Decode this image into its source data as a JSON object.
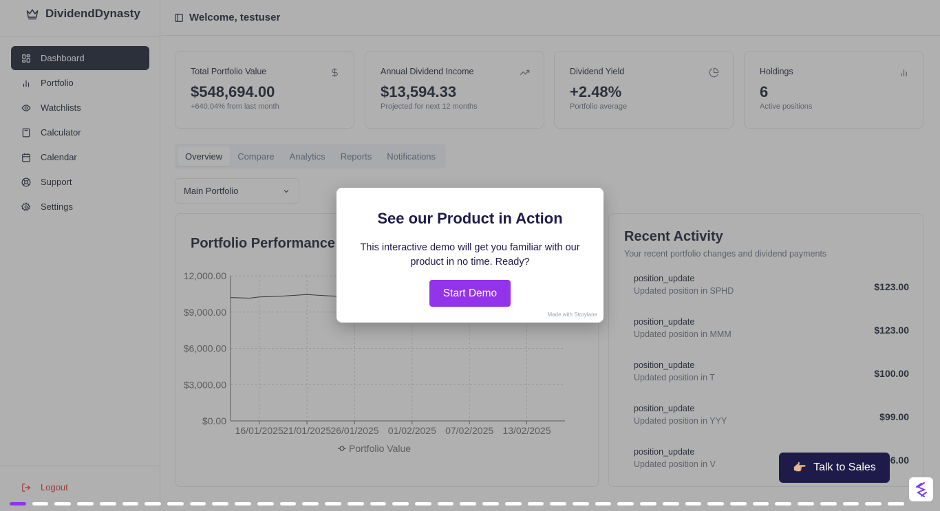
{
  "brand": {
    "name": "DividendDynasty"
  },
  "header": {
    "title": "Welcome, testuser"
  },
  "sidebar": {
    "items": [
      {
        "label": "Dashboard",
        "icon": "dashboard-icon",
        "active": true
      },
      {
        "label": "Portfolio",
        "icon": "bar-chart-icon"
      },
      {
        "label": "Watchlists",
        "icon": "eye-icon"
      },
      {
        "label": "Calculator",
        "icon": "calculator-icon"
      },
      {
        "label": "Calendar",
        "icon": "calendar-icon"
      },
      {
        "label": "Support",
        "icon": "lifebuoy-icon"
      },
      {
        "label": "Settings",
        "icon": "gear-icon"
      }
    ],
    "logout": "Logout"
  },
  "stats": [
    {
      "label": "Total Portfolio Value",
      "value": "$548,694.00",
      "sub": "+640.04% from last month",
      "icon": "dollar-icon"
    },
    {
      "label": "Annual Dividend Income",
      "value": "$13,594.33",
      "sub": "Projected for next 12 months",
      "icon": "trending-up-icon"
    },
    {
      "label": "Dividend Yield",
      "value": "+2.48%",
      "sub": "Portfolio average",
      "icon": "pie-chart-icon"
    },
    {
      "label": "Holdings",
      "value": "6",
      "sub": "Active positions",
      "icon": "bar-chart-icon"
    }
  ],
  "tabs": [
    "Overview",
    "Compare",
    "Analytics",
    "Reports",
    "Notifications"
  ],
  "portfolio_select": {
    "value": "Main Portfolio"
  },
  "performance": {
    "title": "Portfolio Performance"
  },
  "chart_data": {
    "type": "line",
    "title": "Portfolio Performance",
    "xlabel": "",
    "ylabel": "",
    "y_ticks": [
      "$0.00",
      "$3,000.00",
      "$6,000.00",
      "$9,000.00",
      "12,000.00"
    ],
    "ylim": [
      0,
      12000
    ],
    "x_ticks": [
      "16/01/2025",
      "21/01/2025",
      "26/01/2025",
      "01/02/2025",
      "07/02/2025",
      "13/02/2025"
    ],
    "grid": true,
    "legend": "bottom",
    "series": [
      {
        "name": "Portfolio Value",
        "x": [
          "13/01/2025",
          "15/01/2025",
          "16/01/2025",
          "18/01/2025",
          "21/01/2025",
          "23/01/2025",
          "26/01/2025"
        ],
        "values": [
          10200,
          10150,
          10250,
          10300,
          10450,
          10350,
          10250
        ]
      }
    ]
  },
  "activity": {
    "title": "Recent Activity",
    "description": "Your recent portfolio changes and dividend payments",
    "items": [
      {
        "type": "position_update",
        "detail": "Updated position in SPHD",
        "amount": "$123.00"
      },
      {
        "type": "position_update",
        "detail": "Updated position in MMM",
        "amount": "$123.00"
      },
      {
        "type": "position_update",
        "detail": "Updated position in T",
        "amount": "$100.00"
      },
      {
        "type": "position_update",
        "detail": "Updated position in YYY",
        "amount": "$99.00"
      },
      {
        "type": "position_update",
        "detail": "Updated position in V",
        "amount": "$96.00"
      }
    ]
  },
  "modal": {
    "title": "See our Product in Action",
    "text": "This interactive demo will get you familiar with our product in no time. Ready?",
    "button": "Start Demo",
    "credit": "Made with Storylane"
  },
  "sales_button": {
    "label": "Talk to Sales",
    "emoji": "👉🏼"
  },
  "demo_progress": {
    "current_step": 1,
    "total_steps": 40
  },
  "colors": {
    "accent": "#9333ea",
    "navy": "#1e1b4b",
    "sidebar_active": "#0f172a"
  }
}
